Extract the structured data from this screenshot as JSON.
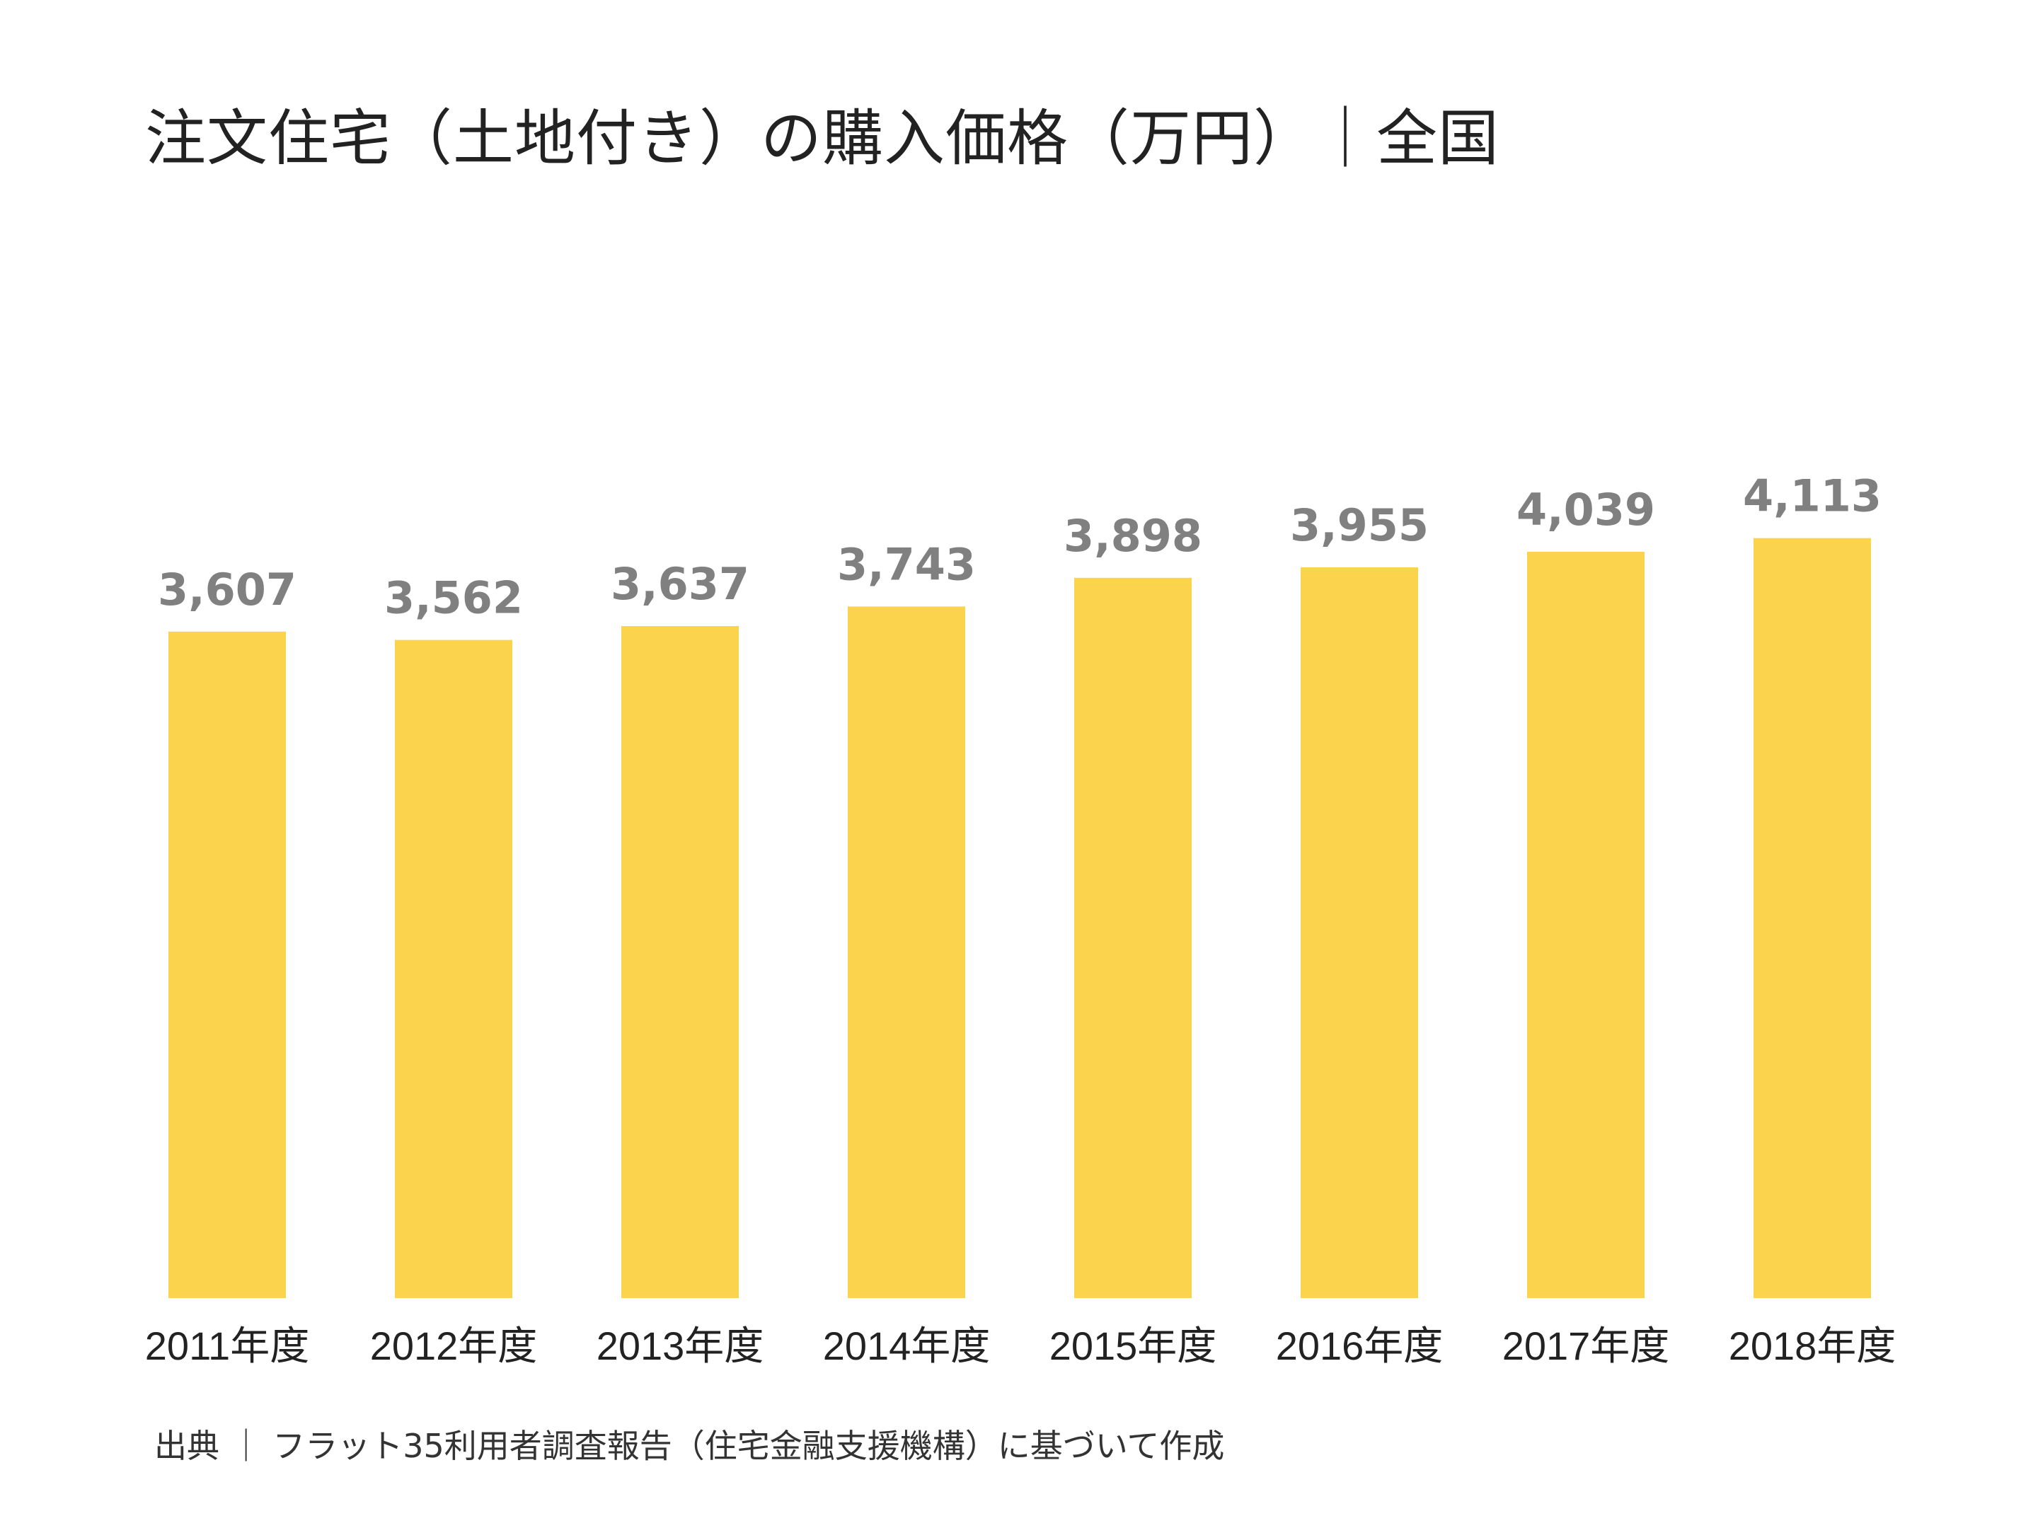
{
  "chart_data": {
    "type": "bar",
    "title": "注文住宅（土地付き）の購入価格（万円）｜全国",
    "categories": [
      "2011年度",
      "2012年度",
      "2013年度",
      "2014年度",
      "2015年度",
      "2016年度",
      "2017年度",
      "2018年度"
    ],
    "values": [
      3607,
      3562,
      3637,
      3743,
      3898,
      3955,
      4039,
      4113
    ],
    "value_labels": [
      "3,607",
      "3,562",
      "3,637",
      "3,743",
      "3,898",
      "3,955",
      "4,039",
      "4,113"
    ],
    "xlabel": "",
    "ylabel": "",
    "grid": false,
    "legend": "none",
    "colors": {
      "bar": "#FCD34D",
      "value_label": "#808080",
      "category_label": "#222222"
    }
  },
  "source": "出典 ｜ フラット35利用者調査報告（住宅金融支援機構）に基づいて作成"
}
